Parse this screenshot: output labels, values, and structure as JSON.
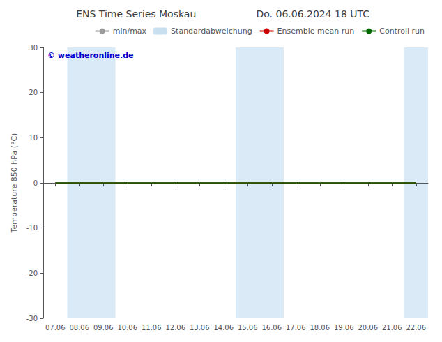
{
  "chart_data": {
    "type": "line",
    "title": "ENS Time Series Moskau",
    "subtitle": "Do. 06.06.2024 18 UTC",
    "y_label": "Temperature 850 hPa (°C)",
    "annotation": {
      "text": "© weatheronline.de",
      "color": "#0000cc"
    },
    "categories": [
      "07.06",
      "08.06",
      "09.06",
      "10.06",
      "11.06",
      "12.06",
      "13.06",
      "14.06",
      "15.06",
      "16.06",
      "17.06",
      "18.06",
      "19.06",
      "20.06",
      "21.06",
      "22.06"
    ],
    "series": [
      {
        "name": "min/max",
        "type": "line",
        "color": "#999999",
        "values": [
          null,
          null,
          null,
          null,
          null,
          null,
          null,
          null,
          null,
          null,
          null,
          null,
          null,
          null,
          null,
          null
        ]
      },
      {
        "name": "Standardabweichung",
        "type": "bar",
        "color": "#c8dff0",
        "values": [
          null,
          null,
          null,
          null,
          null,
          null,
          null,
          null,
          null,
          null,
          null,
          null,
          null,
          null,
          null,
          null
        ]
      },
      {
        "name": "Ensemble mean run",
        "type": "line",
        "color": "#cc0000",
        "values": [
          0,
          0,
          0,
          0,
          0,
          0,
          0,
          0,
          0,
          0,
          0,
          0,
          0,
          0,
          0,
          0
        ]
      },
      {
        "name": "Controll run",
        "type": "line",
        "color": "#006600",
        "values": [
          0,
          0,
          0,
          0,
          0,
          0,
          0,
          0,
          0,
          0,
          0,
          0,
          0,
          0,
          0,
          0
        ]
      }
    ],
    "shade_bands": {
      "color": "#daeaf7",
      "ranges": [
        [
          "08.06",
          "09.06"
        ],
        [
          "15.06",
          "16.06"
        ],
        [
          "22.06",
          "22.06"
        ]
      ]
    },
    "ylim": [
      -30,
      30
    ],
    "yticks": [
      -30,
      -20,
      -10,
      0,
      10,
      20,
      30
    ],
    "grid": false,
    "legend": "upper right"
  }
}
